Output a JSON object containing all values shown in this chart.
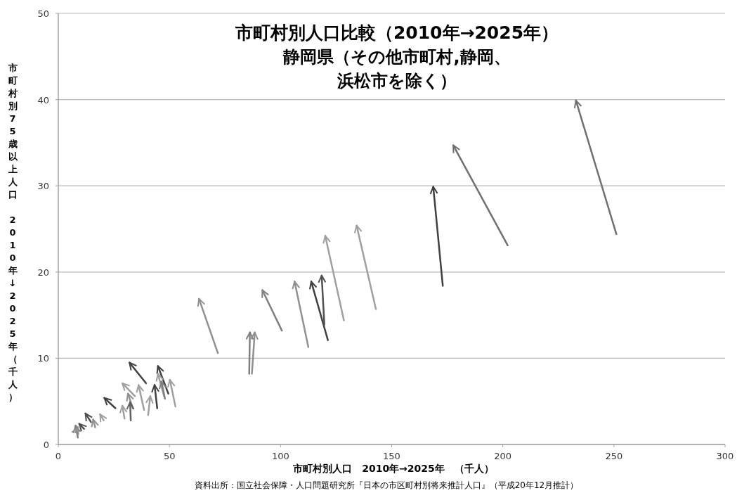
{
  "chart_data": {
    "type": "line",
    "title": "市町村別人口比較（2010年→2025年）",
    "subtitle": "静岡県（その他市町村,静岡、浜松市を除く）",
    "xlabel": "市町村別人口　2010年→2025年　（千人）",
    "ylabel": "市町村別75歳以上人口　2010年↓2025年（千人）",
    "annotations": [
      "資料出所：国立社会保障・人口問題研究所『日本の市区町村別将来推計人口』（平成20年12月推計）"
    ],
    "xlim": [
      0,
      300
    ],
    "xticks": [
      0,
      50,
      100,
      150,
      200,
      250,
      300
    ],
    "ylim": [
      0,
      50
    ],
    "yticks": [
      0,
      10,
      20,
      30,
      40,
      50
    ],
    "grid": "y",
    "marker": "none",
    "line_style": "solid",
    "series": [
      {
        "color": "#707070",
        "x": [
          251.1,
          232.9
        ],
        "values": [
          24.4,
          39.9
        ]
      },
      {
        "color": "#707070",
        "x": [
          202.2,
          177.7
        ],
        "values": [
          23.1,
          34.7
        ]
      },
      {
        "color": "#404040",
        "x": [
          173.0,
          168.7
        ],
        "values": [
          18.4,
          29.9
        ]
      },
      {
        "color": "#a0a0a0",
        "x": [
          142.9,
          134.2
        ],
        "values": [
          15.7,
          25.4
        ]
      },
      {
        "color": "#a0a0a0",
        "x": [
          128.5,
          120.1
        ],
        "values": [
          14.4,
          24.2
        ]
      },
      {
        "color": "#404040",
        "x": [
          121.3,
          113.8
        ],
        "values": [
          12.1,
          18.9
        ]
      },
      {
        "color": "#505050",
        "x": [
          119.7,
          118.5
        ],
        "values": [
          13.9,
          19.6
        ]
      },
      {
        "color": "#909090",
        "x": [
          112.5,
          106.3
        ],
        "values": [
          11.3,
          18.9
        ]
      },
      {
        "color": "#808080",
        "x": [
          100.6,
          91.8
        ],
        "values": [
          13.2,
          17.9
        ]
      },
      {
        "color": "#808080",
        "x": [
          85.9,
          86.2
        ],
        "values": [
          8.2,
          13.0
        ]
      },
      {
        "color": "#909090",
        "x": [
          87.1,
          88.4
        ],
        "values": [
          8.2,
          13.0
        ]
      },
      {
        "color": "#909090",
        "x": [
          71.8,
          63.3
        ],
        "values": [
          10.6,
          16.9
        ]
      },
      {
        "color": "#404040",
        "x": [
          39.5,
          32.0
        ],
        "values": [
          7.1,
          9.5
        ]
      },
      {
        "color": "#404040",
        "x": [
          25.7,
          20.7
        ],
        "values": [
          4.2,
          5.4
        ]
      },
      {
        "color": "#505050",
        "x": [
          14.7,
          12.2
        ],
        "values": [
          2.6,
          3.6
        ]
      },
      {
        "color": "#a0a0a0",
        "x": [
          20.4,
          18.8
        ],
        "values": [
          2.8,
          3.5
        ]
      },
      {
        "color": "#909090",
        "x": [
          16.6,
          15.7
        ],
        "values": [
          2.0,
          2.9
        ]
      },
      {
        "color": "#808080",
        "x": [
          8.8,
          7.8
        ],
        "values": [
          0.8,
          2.2
        ]
      },
      {
        "color": "#505050",
        "x": [
          11.6,
          9.4
        ],
        "values": [
          1.8,
          2.4
        ]
      },
      {
        "color": "#909090",
        "x": [
          7.8,
          8.8
        ],
        "values": [
          1.4,
          2.0
        ]
      },
      {
        "color": "#a0a0a0",
        "x": [
          34.5,
          28.8
        ],
        "values": [
          5.6,
          7.1
        ]
      },
      {
        "color": "#909090",
        "x": [
          33.5,
          31.3
        ],
        "values": [
          4.2,
          5.9
        ]
      },
      {
        "color": "#606060",
        "x": [
          32.6,
          32.3
        ],
        "values": [
          2.8,
          4.9
        ]
      },
      {
        "color": "#a0a0a0",
        "x": [
          29.8,
          28.8
        ],
        "values": [
          3.0,
          4.5
        ]
      },
      {
        "color": "#a0a0a0",
        "x": [
          38.6,
          36.1
        ],
        "values": [
          4.0,
          6.9
        ]
      },
      {
        "color": "#a0a0a0",
        "x": [
          40.4,
          41.4
        ],
        "values": [
          3.4,
          5.6
        ]
      },
      {
        "color": "#404040",
        "x": [
          44.5,
          43.3
        ],
        "values": [
          4.2,
          6.9
        ]
      },
      {
        "color": "#404040",
        "x": [
          49.5,
          44.8
        ],
        "values": [
          5.9,
          9.1
        ]
      },
      {
        "color": "#a0a0a0",
        "x": [
          47.6,
          44.8
        ],
        "values": [
          5.6,
          8.2
        ]
      },
      {
        "color": "#808080",
        "x": [
          48.0,
          46.4
        ],
        "values": [
          5.3,
          7.3
        ]
      },
      {
        "color": "#a0a0a0",
        "x": [
          52.7,
          50.2
        ],
        "values": [
          4.4,
          7.5
        ]
      }
    ]
  }
}
